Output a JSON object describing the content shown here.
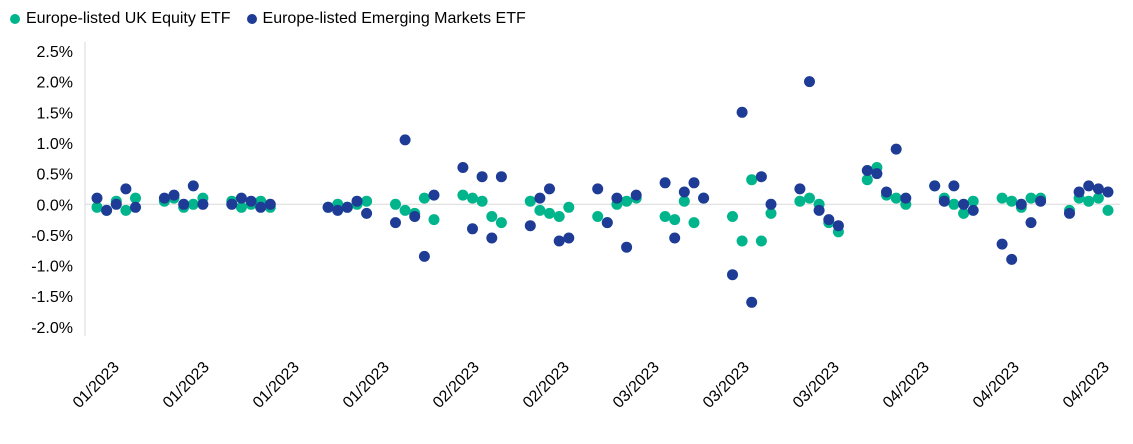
{
  "legend": {
    "series": [
      {
        "label": "Europe-listed UK Equity ETF",
        "color": "#00b48b"
      },
      {
        "label": "Europe-listed Emerging Markets ETF",
        "color": "#1e3c96"
      }
    ]
  },
  "chart_data": {
    "type": "scatter",
    "title": "",
    "legend_position": "top-left",
    "grid": "zero-line-only",
    "axis_color": "#d9d9d9",
    "y_axis": {
      "min": -2.0,
      "max": 2.5,
      "step": 0.5,
      "tick_format": "0.0%"
    },
    "x_range": [
      0,
      105
    ],
    "x_tick_labels": [
      "01/2023",
      "01/2023",
      "01/2023",
      "01/2023",
      "02/2023",
      "02/2023",
      "03/2023",
      "03/2023",
      "03/2023",
      "04/2023",
      "04/2023",
      "04/2023"
    ],
    "series": [
      {
        "name": "Europe-listed UK Equity ETF",
        "color": "#00b48b",
        "points": [
          [
            0,
            -0.05
          ],
          [
            1,
            -0.1
          ],
          [
            2,
            0.05
          ],
          [
            3,
            -0.1
          ],
          [
            4,
            0.1
          ],
          [
            7,
            0.05
          ],
          [
            8,
            0.1
          ],
          [
            9,
            -0.05
          ],
          [
            10,
            0
          ],
          [
            11,
            0.1
          ],
          [
            14,
            0.05
          ],
          [
            15,
            -0.05
          ],
          [
            16,
            0
          ],
          [
            17,
            0.05
          ],
          [
            18,
            -0.05
          ],
          [
            24,
            -0.05
          ],
          [
            25,
            0
          ],
          [
            26,
            -0.05
          ],
          [
            27,
            0
          ],
          [
            28,
            0.05
          ],
          [
            31,
            0
          ],
          [
            32,
            -0.1
          ],
          [
            33,
            -0.15
          ],
          [
            34,
            0.1
          ],
          [
            35,
            -0.25
          ],
          [
            38,
            0.15
          ],
          [
            39,
            0.1
          ],
          [
            40,
            0.05
          ],
          [
            41,
            -0.2
          ],
          [
            42,
            -0.3
          ],
          [
            45,
            0.05
          ],
          [
            46,
            -0.1
          ],
          [
            47,
            -0.15
          ],
          [
            48,
            -0.2
          ],
          [
            49,
            -0.05
          ],
          [
            52,
            -0.2
          ],
          [
            53,
            -0.3
          ],
          [
            54,
            0
          ],
          [
            55,
            0.05
          ],
          [
            56,
            0.1
          ],
          [
            59,
            -0.2
          ],
          [
            60,
            -0.25
          ],
          [
            61,
            0.05
          ],
          [
            62,
            -0.3
          ],
          [
            63,
            0.1
          ],
          [
            66,
            -0.2
          ],
          [
            67,
            -0.6
          ],
          [
            68,
            0.4
          ],
          [
            69,
            -0.6
          ],
          [
            70,
            -0.15
          ],
          [
            73,
            0.05
          ],
          [
            74,
            0.1
          ],
          [
            75,
            0
          ],
          [
            76,
            -0.3
          ],
          [
            77,
            -0.45
          ],
          [
            80,
            0.4
          ],
          [
            81,
            0.6
          ],
          [
            82,
            0.15
          ],
          [
            83,
            0.1
          ],
          [
            84,
            0
          ],
          [
            87,
            0.3
          ],
          [
            88,
            0.1
          ],
          [
            89,
            0
          ],
          [
            90,
            -0.15
          ],
          [
            91,
            0.05
          ],
          [
            94,
            0.1
          ],
          [
            95,
            0.05
          ],
          [
            96,
            -0.05
          ],
          [
            97,
            0.1
          ],
          [
            98,
            0.1
          ],
          [
            101,
            -0.1
          ],
          [
            102,
            0.1
          ],
          [
            103,
            0.05
          ],
          [
            104,
            0.1
          ],
          [
            105,
            -0.1
          ]
        ]
      },
      {
        "name": "Europe-listed Emerging Markets ETF",
        "color": "#1e3c96",
        "points": [
          [
            0,
            0.1
          ],
          [
            1,
            -0.1
          ],
          [
            2,
            0
          ],
          [
            3,
            0.25
          ],
          [
            4,
            -0.05
          ],
          [
            7,
            0.1
          ],
          [
            8,
            0.15
          ],
          [
            9,
            0
          ],
          [
            10,
            0.3
          ],
          [
            11,
            0
          ],
          [
            14,
            0
          ],
          [
            15,
            0.1
          ],
          [
            16,
            0.05
          ],
          [
            17,
            -0.05
          ],
          [
            18,
            0
          ],
          [
            24,
            -0.05
          ],
          [
            25,
            -0.1
          ],
          [
            26,
            -0.05
          ],
          [
            27,
            0.05
          ],
          [
            28,
            -0.15
          ],
          [
            31,
            -0.3
          ],
          [
            32,
            1.05
          ],
          [
            33,
            -0.2
          ],
          [
            34,
            -0.85
          ],
          [
            35,
            0.15
          ],
          [
            38,
            0.6
          ],
          [
            39,
            -0.4
          ],
          [
            40,
            0.45
          ],
          [
            41,
            -0.55
          ],
          [
            42,
            0.45
          ],
          [
            45,
            -0.35
          ],
          [
            46,
            0.1
          ],
          [
            47,
            0.25
          ],
          [
            48,
            -0.6
          ],
          [
            49,
            -0.55
          ],
          [
            52,
            0.25
          ],
          [
            53,
            -0.3
          ],
          [
            54,
            0.1
          ],
          [
            55,
            -0.7
          ],
          [
            56,
            0.15
          ],
          [
            59,
            0.35
          ],
          [
            60,
            -0.55
          ],
          [
            61,
            0.2
          ],
          [
            62,
            0.35
          ],
          [
            63,
            0.1
          ],
          [
            66,
            -1.15
          ],
          [
            67,
            1.5
          ],
          [
            68,
            -1.6
          ],
          [
            69,
            0.45
          ],
          [
            70,
            0
          ],
          [
            73,
            0.25
          ],
          [
            74,
            2.0
          ],
          [
            75,
            -0.1
          ],
          [
            76,
            -0.25
          ],
          [
            77,
            -0.35
          ],
          [
            80,
            0.55
          ],
          [
            81,
            0.5
          ],
          [
            82,
            0.2
          ],
          [
            83,
            0.9
          ],
          [
            84,
            0.1
          ],
          [
            87,
            0.3
          ],
          [
            88,
            0.05
          ],
          [
            89,
            0.3
          ],
          [
            90,
            0
          ],
          [
            91,
            -0.1
          ],
          [
            94,
            -0.65
          ],
          [
            95,
            -0.9
          ],
          [
            96,
            0
          ],
          [
            97,
            -0.3
          ],
          [
            98,
            0.05
          ],
          [
            101,
            -0.15
          ],
          [
            102,
            0.2
          ],
          [
            103,
            0.3
          ],
          [
            104,
            0.25
          ],
          [
            105,
            0.2
          ]
        ]
      }
    ]
  }
}
